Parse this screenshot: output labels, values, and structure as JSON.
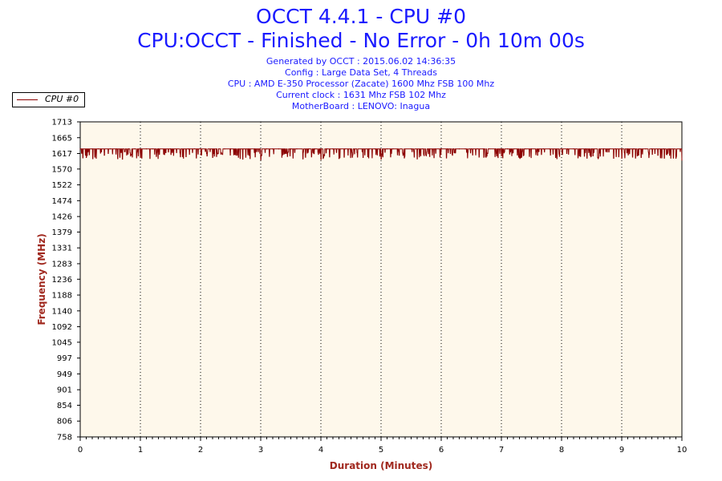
{
  "header": {
    "title": "OCCT 4.4.1 - CPU #0",
    "subtitle": "CPU:OCCT - Finished - No Error - 0h 10m 00s",
    "info_lines": [
      "Generated by OCCT : 2015.06.02 14:36:35",
      "Config : Large Data Set, 4 Threads",
      "CPU : AMD E-350 Processor (Zacate) 1600 Mhz FSB 100 Mhz",
      "Current clock : 1631 Mhz FSB 102 Mhz",
      "MotherBoard : LENOVO: Inagua"
    ]
  },
  "legend": {
    "label": "CPU #0",
    "position": "top-left"
  },
  "colors": {
    "series": "#8b0000",
    "plot_bg": "#fef8eb",
    "title": "#1a1aff",
    "axis_title": "#a0281e"
  },
  "chart_data": {
    "type": "line",
    "title": "OCCT 4.4.1 - CPU #0",
    "xlabel": "Duration (Minutes)",
    "ylabel": "Frequency (MHz)",
    "xlim": [
      0,
      10
    ],
    "ylim": [
      758,
      1713
    ],
    "x_ticks": [
      0,
      1,
      2,
      3,
      4,
      5,
      6,
      7,
      8,
      9,
      10
    ],
    "y_ticks": [
      758,
      806,
      854,
      901,
      949,
      997,
      1045,
      1092,
      1140,
      1188,
      1236,
      1283,
      1331,
      1379,
      1426,
      1474,
      1522,
      1570,
      1617,
      1665,
      1713
    ],
    "grid": "vertical-dotted",
    "series": [
      {
        "name": "CPU #0",
        "base_value": 1631,
        "x": [
          0,
          0.1,
          0.2,
          0.3,
          0.4,
          0.5,
          0.6,
          0.7,
          0.8,
          0.9,
          1.0,
          1.1,
          1.2,
          1.3,
          1.4,
          1.5,
          1.6,
          1.7,
          1.8,
          1.9,
          2.0,
          2.1,
          2.2,
          2.3,
          2.4,
          2.5,
          2.6,
          2.7,
          2.8,
          2.9,
          3.0,
          3.1,
          3.2,
          3.3,
          3.4,
          3.5,
          3.6,
          3.7,
          3.8,
          3.9,
          4.0,
          4.1,
          4.2,
          4.3,
          4.4,
          4.5,
          4.6,
          4.7,
          4.8,
          4.9,
          5.0,
          5.1,
          5.2,
          5.3,
          5.4,
          5.5,
          5.6,
          5.7,
          5.8,
          5.9,
          6.0,
          6.1,
          6.2,
          6.3,
          6.4,
          6.5,
          6.6,
          6.7,
          6.8,
          6.9,
          7.0,
          7.1,
          7.2,
          7.3,
          7.4,
          7.5,
          7.6,
          7.7,
          7.8,
          7.9,
          8.0,
          8.1,
          8.2,
          8.3,
          8.4,
          8.5,
          8.6,
          8.7,
          8.8,
          8.9,
          9.0,
          9.1,
          9.2,
          9.3,
          9.4,
          9.5,
          9.6,
          9.7,
          9.8,
          9.9,
          10.0
        ],
        "values": [
          1631,
          1605,
          1631,
          1631,
          1612,
          1631,
          1631,
          1600,
          1631,
          1631,
          1605,
          1631,
          1631,
          1631,
          1614,
          1631,
          1620,
          1608,
          1631,
          1631,
          1631,
          1617,
          1605,
          1631,
          1631,
          1631,
          1612,
          1600,
          1631,
          1631,
          1598,
          1631,
          1631,
          1631,
          1617,
          1631,
          1631,
          1601,
          1631,
          1631,
          1599,
          1631,
          1631,
          1602,
          1631,
          1631,
          1620,
          1605,
          1631,
          1631,
          1600,
          1631,
          1631,
          1612,
          1631,
          1631,
          1601,
          1631,
          1631,
          1631,
          1631,
          1631,
          1631,
          1631,
          1631,
          1631,
          1631,
          1631,
          1631,
          1631,
          1610,
          1631,
          1631,
          1605,
          1631,
          1631,
          1612,
          1631,
          1631,
          1605,
          1631,
          1631,
          1631,
          1610,
          1631,
          1631,
          1605,
          1631,
          1631,
          1631,
          1603,
          1631,
          1631,
          1631,
          1631,
          1631,
          1612,
          1631,
          1631,
          1603,
          1597
        ]
      }
    ]
  }
}
